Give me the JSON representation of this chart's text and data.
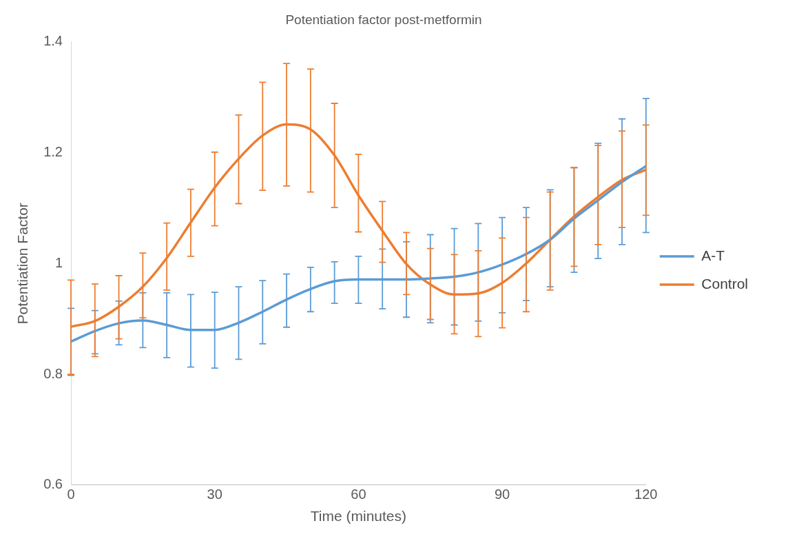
{
  "chart_data": {
    "type": "line",
    "title": "Potentiation factor post-metformin",
    "xlabel": "Time (minutes)",
    "ylabel": "Potentiation Factor",
    "x": [
      0,
      5,
      10,
      15,
      20,
      25,
      30,
      35,
      40,
      45,
      50,
      55,
      60,
      65,
      70,
      75,
      80,
      85,
      90,
      95,
      100,
      105,
      110,
      115,
      120
    ],
    "series": [
      {
        "name": "A-T",
        "color": "#5b9bd5",
        "values": [
          0.859,
          0.878,
          0.892,
          0.897,
          0.889,
          0.88,
          0.88,
          0.893,
          0.913,
          0.935,
          0.954,
          0.968,
          0.971,
          0.971,
          0.971,
          0.973,
          0.976,
          0.984,
          0.998,
          1.017,
          1.043,
          1.081,
          1.114,
          1.147,
          1.176
        ],
        "errors": [
          [
            0.798,
            0.919
          ],
          [
            0.837,
            0.915
          ],
          [
            0.853,
            0.932
          ],
          [
            0.848,
            0.947
          ],
          [
            0.83,
            0.947
          ],
          [
            0.813,
            0.944
          ],
          [
            0.811,
            0.948
          ],
          [
            0.827,
            0.958
          ],
          [
            0.855,
            0.969
          ],
          [
            0.885,
            0.981
          ],
          [
            0.913,
            0.993
          ],
          [
            0.928,
            1.003
          ],
          [
            0.928,
            1.013
          ],
          [
            0.918,
            1.026
          ],
          [
            0.903,
            1.039
          ],
          [
            0.893,
            1.052
          ],
          [
            0.889,
            1.063
          ],
          [
            0.896,
            1.072
          ],
          [
            0.911,
            1.083
          ],
          [
            0.933,
            1.101
          ],
          [
            0.958,
            1.133
          ],
          [
            0.984,
            1.173
          ],
          [
            1.009,
            1.217
          ],
          [
            1.034,
            1.261
          ],
          [
            1.056,
            1.298
          ]
        ]
      },
      {
        "name": "Control",
        "color": "#ed7d31",
        "values": [
          0.886,
          0.896,
          0.922,
          0.958,
          1.01,
          1.074,
          1.137,
          1.189,
          1.231,
          1.251,
          1.242,
          1.195,
          1.123,
          1.059,
          0.999,
          0.962,
          0.944,
          0.946,
          0.965,
          1.0,
          1.043,
          1.085,
          1.12,
          1.151,
          1.169
        ],
        "errors": [
          [
            0.8,
            0.97
          ],
          [
            0.832,
            0.963
          ],
          [
            0.864,
            0.978
          ],
          [
            0.902,
            1.019
          ],
          [
            0.952,
            1.073
          ],
          [
            1.013,
            1.134
          ],
          [
            1.068,
            1.201
          ],
          [
            1.108,
            1.268
          ],
          [
            1.132,
            1.327
          ],
          [
            1.14,
            1.361
          ],
          [
            1.129,
            1.351
          ],
          [
            1.101,
            1.289
          ],
          [
            1.057,
            1.197
          ],
          [
            1.002,
            1.112
          ],
          [
            0.944,
            1.056
          ],
          [
            0.899,
            1.027
          ],
          [
            0.873,
            1.016
          ],
          [
            0.868,
            1.023
          ],
          [
            0.884,
            1.046
          ],
          [
            0.913,
            1.083
          ],
          [
            0.952,
            1.129
          ],
          [
            0.995,
            1.173
          ],
          [
            1.034,
            1.213
          ],
          [
            1.065,
            1.239
          ],
          [
            1.087,
            1.25
          ]
        ]
      }
    ],
    "xlim": [
      0,
      120
    ],
    "xticks": [
      0,
      30,
      60,
      90,
      120
    ],
    "ylim": [
      0.6,
      1.4
    ],
    "yticks": [
      0.6,
      0.8,
      1,
      1.2,
      1.4
    ],
    "grid": false,
    "legend": "right",
    "marker": "none",
    "line_style": "solid"
  }
}
